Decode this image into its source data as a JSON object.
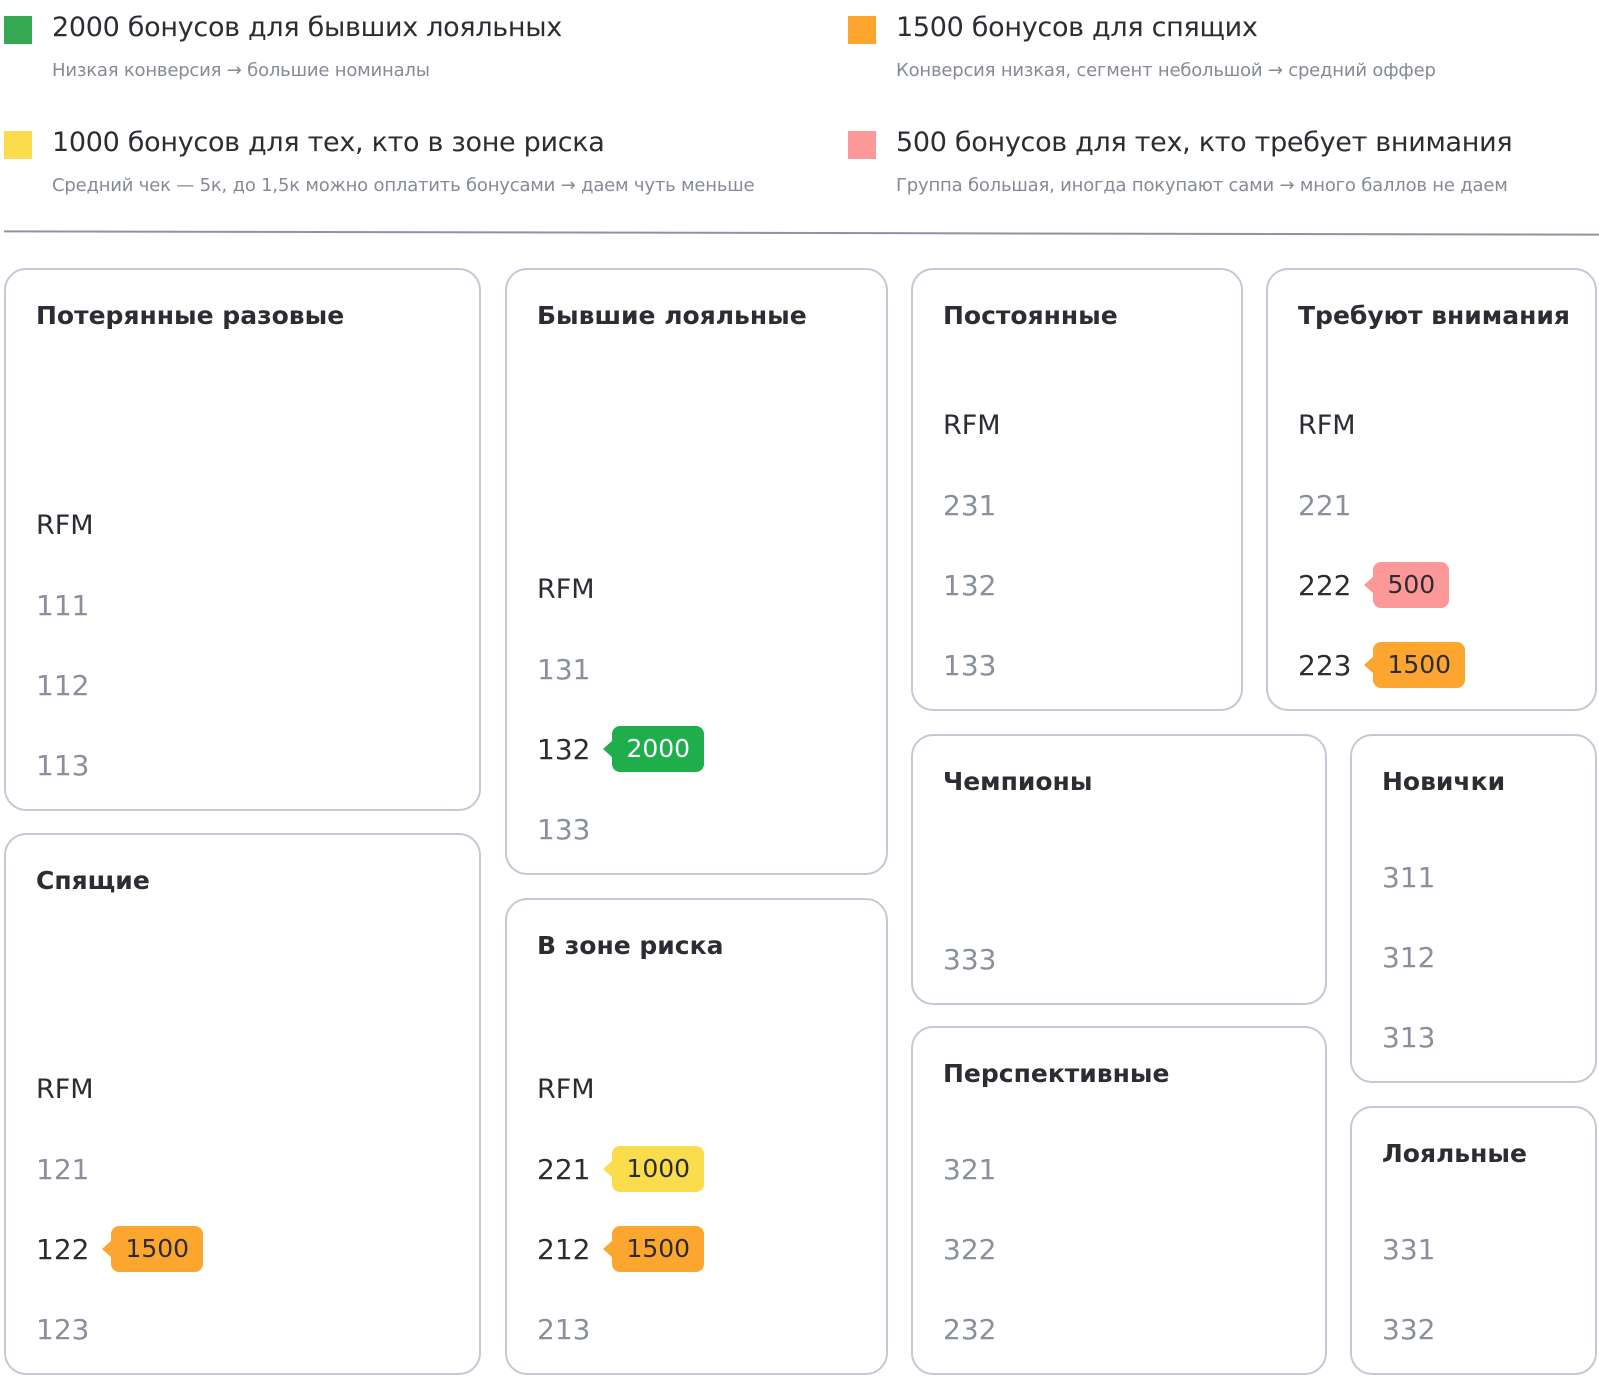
{
  "colors": {
    "green": "#1fae4b",
    "orange": "#fca62f",
    "yellow": "#fbdc4c",
    "pink": "#fc9998",
    "legend_green": "#34a853"
  },
  "legend": [
    {
      "color": "green",
      "title": "2000 бонусов для бывших лояльных",
      "subtitle": "Низкая конверсия → большие номиналы"
    },
    {
      "color": "orange",
      "title": "1500 бонусов для спящих",
      "subtitle": "Конверсия низкая, сегмент небольшой → средний оффер"
    },
    {
      "color": "yellow",
      "title": "1000 бонусов для тех, кто в зоне риска",
      "subtitle": "Средний чек — 5к, до 1,5к можно оплатить бонусами → даем чуть меньше"
    },
    {
      "color": "pink",
      "title": "500 бонусов для тех, кто требует внимания",
      "subtitle": "Группа большая, иногда покупают сами → много баллов не даем"
    }
  ],
  "cards": [
    {
      "title": "Потерянные разовые",
      "rfm_label": "RFM",
      "codes": [
        {
          "code": "111"
        },
        {
          "code": "112"
        },
        {
          "code": "113"
        }
      ]
    },
    {
      "title": "Спящие",
      "rfm_label": "RFM",
      "codes": [
        {
          "code": "121"
        },
        {
          "code": "122",
          "bonus": "1500",
          "color": "orange"
        },
        {
          "code": "123"
        }
      ]
    },
    {
      "title": "Бывшие лояльные",
      "rfm_label": "RFM",
      "codes": [
        {
          "code": "131"
        },
        {
          "code": "132",
          "bonus": "2000",
          "color": "green"
        },
        {
          "code": "133"
        }
      ]
    },
    {
      "title": "В зоне риска",
      "rfm_label": "RFM",
      "codes": [
        {
          "code": "221",
          "bonus": "1000",
          "color": "yellow"
        },
        {
          "code": "212",
          "bonus": "1500",
          "color": "orange"
        },
        {
          "code": "213"
        }
      ]
    },
    {
      "title": "Постоянные",
      "rfm_label": "RFM",
      "codes": [
        {
          "code": "231"
        },
        {
          "code": "132"
        },
        {
          "code": "133"
        }
      ]
    },
    {
      "title": "Требуют внимания",
      "rfm_label": "RFM",
      "codes": [
        {
          "code": "221"
        },
        {
          "code": "222",
          "bonus": "500",
          "color": "pink"
        },
        {
          "code": "223",
          "bonus": "1500",
          "color": "orange"
        }
      ]
    },
    {
      "title": "Чемпионы",
      "codes": [
        {
          "code": "333"
        }
      ]
    },
    {
      "title": "Перспективные",
      "codes": [
        {
          "code": "321"
        },
        {
          "code": "322"
        },
        {
          "code": "232"
        }
      ]
    },
    {
      "title": "Новички",
      "codes": [
        {
          "code": "311"
        },
        {
          "code": "312"
        },
        {
          "code": "313"
        }
      ]
    },
    {
      "title": "Лояльные",
      "codes": [
        {
          "code": "331"
        },
        {
          "code": "332"
        }
      ]
    }
  ]
}
